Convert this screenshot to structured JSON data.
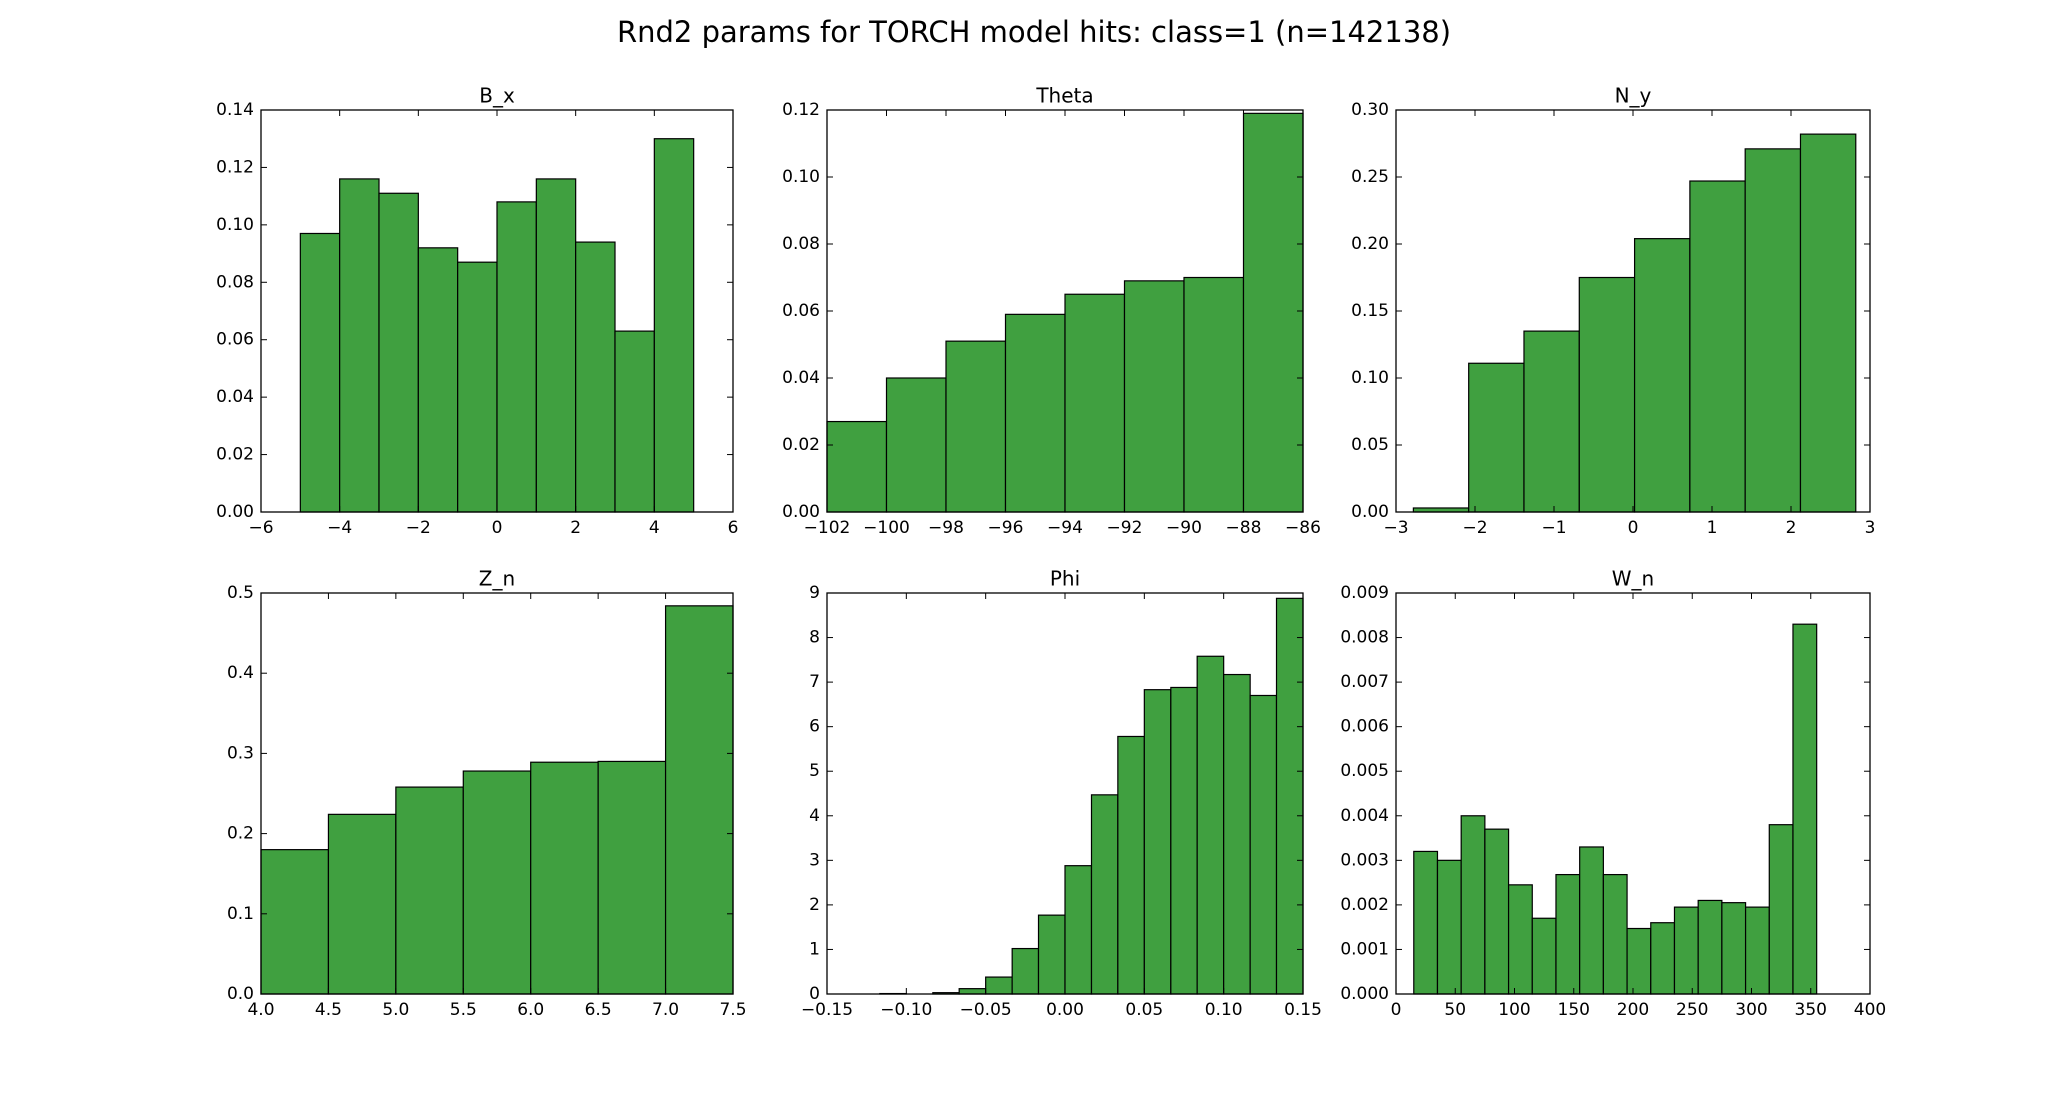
{
  "title": "Rnd2 params for TORCH model hits: class=1 (n=142138)",
  "chart_data": [
    {
      "type": "histogram",
      "title": "B_x",
      "color": "#40a040",
      "bins": [
        -5,
        -4,
        -3,
        -2,
        -1,
        0,
        1,
        2,
        3,
        4,
        5
      ],
      "values": [
        0.097,
        0.116,
        0.111,
        0.092,
        0.087,
        0.108,
        0.116,
        0.094,
        0.063,
        0.13
      ],
      "xlim": [
        -6,
        6
      ],
      "ylim": [
        0,
        0.14
      ],
      "xticks": [
        {
          "value": -6,
          "label": "−6"
        },
        {
          "value": -4,
          "label": "−4"
        },
        {
          "value": -2,
          "label": "−2"
        },
        0,
        2,
        4,
        6
      ],
      "yticks": [
        {
          "value": 0,
          "label": "0.00"
        },
        0.02,
        0.04,
        0.06,
        0.08,
        {
          "value": 0.1,
          "label": "0.10"
        },
        0.12,
        0.14
      ]
    },
    {
      "type": "histogram",
      "title": "Theta",
      "color": "#40a040",
      "bins": [
        -102,
        -100,
        -98,
        -96,
        -94,
        -92,
        -90,
        -88,
        -86
      ],
      "values": [
        0.027,
        0.04,
        0.051,
        0.059,
        0.065,
        0.069,
        0.07,
        0.119
      ],
      "xlim": [
        -102,
        -86
      ],
      "ylim": [
        0,
        0.12
      ],
      "xticks": [
        {
          "value": -102,
          "label": "−102"
        },
        {
          "value": -100,
          "label": "−100"
        },
        {
          "value": -98,
          "label": "−98"
        },
        {
          "value": -96,
          "label": "−96"
        },
        {
          "value": -94,
          "label": "−94"
        },
        {
          "value": -92,
          "label": "−92"
        },
        {
          "value": -90,
          "label": "−90"
        },
        {
          "value": -88,
          "label": "−88"
        },
        {
          "value": -86,
          "label": "−86"
        }
      ],
      "yticks": [
        {
          "value": 0,
          "label": "0.00"
        },
        0.02,
        0.04,
        0.06,
        0.08,
        {
          "value": 0.1,
          "label": "0.10"
        },
        0.12
      ]
    },
    {
      "type": "histogram",
      "title": "N_y",
      "color": "#40a040",
      "bins": [
        -2.78,
        -2.08,
        -1.38,
        -0.68,
        0.02,
        0.72,
        1.42,
        2.12,
        2.82
      ],
      "values": [
        0.003,
        0.111,
        0.135,
        0.175,
        0.204,
        0.247,
        0.271,
        0.282
      ],
      "xlim": [
        -3,
        3
      ],
      "ylim": [
        0,
        0.3
      ],
      "xticks": [
        {
          "value": -3,
          "label": "−3"
        },
        {
          "value": -2,
          "label": "−2"
        },
        {
          "value": -1,
          "label": "−1"
        },
        0,
        1,
        2,
        3
      ],
      "yticks": [
        {
          "value": 0,
          "label": "0.00"
        },
        0.05,
        {
          "value": 0.1,
          "label": "0.10"
        },
        0.15,
        {
          "value": 0.2,
          "label": "0.20"
        },
        0.25,
        {
          "value": 0.3,
          "label": "0.30"
        }
      ]
    },
    {
      "type": "histogram",
      "title": "Z_n",
      "color": "#40a040",
      "bins": [
        4,
        4.5,
        5,
        5.5,
        6,
        6.5,
        7,
        7.5
      ],
      "values": [
        0.18,
        0.224,
        0.258,
        0.278,
        0.289,
        0.29,
        0.484
      ],
      "xlim": [
        4,
        7.5
      ],
      "ylim": [
        0,
        0.5
      ],
      "xticks": [
        {
          "value": 4,
          "label": "4.0"
        },
        4.5,
        {
          "value": 5,
          "label": "5.0"
        },
        5.5,
        {
          "value": 6,
          "label": "6.0"
        },
        6.5,
        {
          "value": 7,
          "label": "7.0"
        },
        7.5
      ],
      "yticks": [
        {
          "value": 0,
          "label": "0.0"
        },
        0.1,
        0.2,
        0.3,
        0.4,
        0.5
      ]
    },
    {
      "type": "histogram",
      "title": "Phi",
      "color": "#40a040",
      "bins": [
        -0.15,
        -0.1333,
        -0.1167,
        -0.1,
        -0.0833,
        -0.0667,
        -0.05,
        -0.0333,
        -0.0167,
        0,
        0.0167,
        0.0333,
        0.05,
        0.0667,
        0.0833,
        0.1,
        0.1167,
        0.1333,
        0.15
      ],
      "values": [
        0,
        0,
        0.01,
        0,
        0.03,
        0.12,
        0.38,
        1.02,
        1.77,
        2.88,
        4.47,
        5.78,
        6.83,
        6.88,
        7.58,
        7.17,
        6.7,
        8.88
      ],
      "xlim": [
        -0.15,
        0.15
      ],
      "ylim": [
        0,
        9
      ],
      "xticks": [
        {
          "value": -0.15,
          "label": "−0.15"
        },
        {
          "value": -0.1,
          "label": "−0.10"
        },
        {
          "value": -0.05,
          "label": "−0.05"
        },
        {
          "value": 0,
          "label": "0.00"
        },
        0.05,
        {
          "value": 0.1,
          "label": "0.10"
        },
        0.15
      ],
      "yticks": [
        0,
        1,
        2,
        3,
        4,
        5,
        6,
        7,
        8,
        9
      ]
    },
    {
      "type": "histogram",
      "title": "W_n",
      "color": "#40a040",
      "bins": [
        15,
        35,
        55,
        75,
        95,
        115,
        135,
        155,
        175,
        195,
        215,
        235,
        255,
        275,
        295,
        315,
        335,
        355
      ],
      "values": [
        0.0032,
        0.003,
        0.004,
        0.0037,
        0.00245,
        0.0017,
        0.00268,
        0.0033,
        0.00268,
        0.00147,
        0.0016,
        0.00195,
        0.0021,
        0.00205,
        0.00195,
        0.0038,
        0.0083
      ],
      "xlim": [
        0,
        400
      ],
      "ylim": [
        0,
        0.009
      ],
      "xticks": [
        0,
        50,
        100,
        150,
        200,
        250,
        300,
        350,
        400
      ],
      "yticks": [
        {
          "value": 0,
          "label": "0.000"
        },
        0.001,
        0.002,
        0.003,
        0.004,
        0.005,
        0.006,
        0.007,
        0.008,
        0.009
      ]
    }
  ]
}
